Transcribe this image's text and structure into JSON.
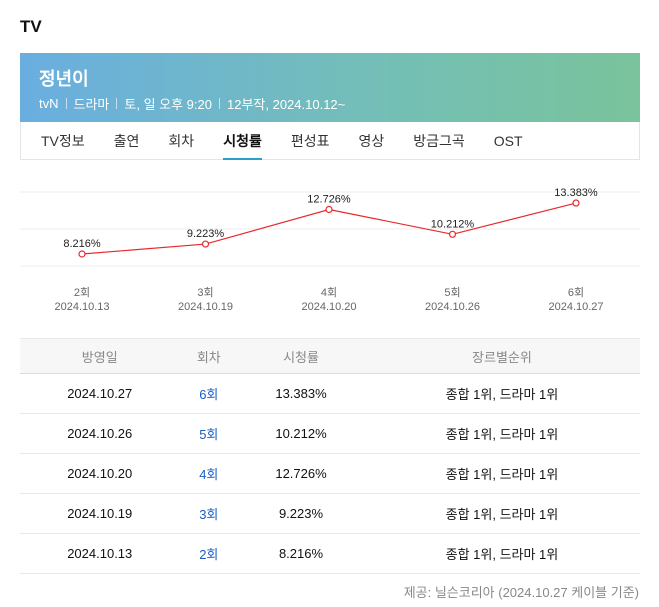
{
  "section_title": "TV",
  "show": {
    "title": "정년이",
    "channel": "tvN",
    "genre": "드라마",
    "airtime": "토, 일 오후 9:20",
    "info": "12부작, 2024.10.12~"
  },
  "tabs": [
    {
      "label": "TV정보",
      "active": false
    },
    {
      "label": "출연",
      "active": false
    },
    {
      "label": "회차",
      "active": false
    },
    {
      "label": "시청률",
      "active": true
    },
    {
      "label": "편성표",
      "active": false
    },
    {
      "label": "영상",
      "active": false
    },
    {
      "label": "방금그곡",
      "active": false
    },
    {
      "label": "OST",
      "active": false
    }
  ],
  "chart_data": {
    "type": "line",
    "categories": [
      "2회",
      "3회",
      "4회",
      "5회",
      "6회"
    ],
    "dates": [
      "2024.10.13",
      "2024.10.19",
      "2024.10.20",
      "2024.10.26",
      "2024.10.27"
    ],
    "values": [
      8.216,
      9.223,
      12.726,
      10.212,
      13.383
    ],
    "value_labels": [
      "8.216%",
      "9.223%",
      "12.726%",
      "10.212%",
      "13.383%"
    ],
    "line_color": "#e8292d",
    "ylim": [
      7,
      14.5
    ],
    "grid": true
  },
  "table": {
    "headers": [
      "방영일",
      "회차",
      "시청률",
      "장르별순위"
    ],
    "rows": [
      {
        "date": "2024.10.27",
        "episode": "6회",
        "rating": "13.383%",
        "rank": "종합 1위, 드라마 1위"
      },
      {
        "date": "2024.10.26",
        "episode": "5회",
        "rating": "10.212%",
        "rank": "종합 1위, 드라마 1위"
      },
      {
        "date": "2024.10.20",
        "episode": "4회",
        "rating": "12.726%",
        "rank": "종합 1위, 드라마 1위"
      },
      {
        "date": "2024.10.19",
        "episode": "3회",
        "rating": "9.223%",
        "rank": "종합 1위, 드라마 1위"
      },
      {
        "date": "2024.10.13",
        "episode": "2회",
        "rating": "8.216%",
        "rank": "종합 1위, 드라마 1위"
      }
    ]
  },
  "source": "제공: 닐슨코리아 (2024.10.27 케이블 기준)"
}
